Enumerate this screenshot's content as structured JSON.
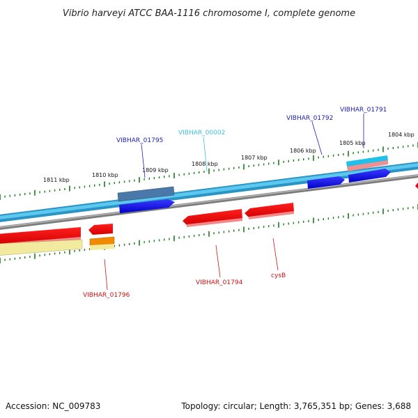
{
  "title": "Vibrio harveyi ATCC BAA-1116 chromosome I, complete genome",
  "footer": {
    "accession": "Accession: NC_009783",
    "topology": "Topology: circular; Length: 3,765,351 bp; Genes: 3,688"
  },
  "colors": {
    "backbone_outer": "#2a95c4",
    "backbone_inner": "#5cc8f0",
    "reverse_backbone": "#808080",
    "forward_gene": "#0000e0",
    "forward_gene_alt": "#4a78a8",
    "reverse_gene": "#ee0000",
    "reverse_gene_alt": "#f2ea9e",
    "orange_gene": "#f08a00",
    "rna_gene": "#22bfe8",
    "tick": "#1a7a1a",
    "label_forward": "#1c1cb0",
    "label_rna": "#3cc0e0",
    "label_reverse": "#cc1111"
  },
  "scale": {
    "labels": [
      "1811 kbp",
      "1810 kbp",
      "1809 kbp",
      "1808 kbp",
      "1807 kbp",
      "1806 kbp",
      "1805 kbp",
      "1804 kbp"
    ]
  },
  "genes": {
    "forward_labels": [
      "VIBHAR_01795",
      "VIBHAR_00002",
      "VIBHAR_01792",
      "VIBHAR_01791"
    ],
    "reverse_labels": [
      "VIBHAR_01796",
      "VIBHAR_01794",
      "cysB"
    ]
  }
}
